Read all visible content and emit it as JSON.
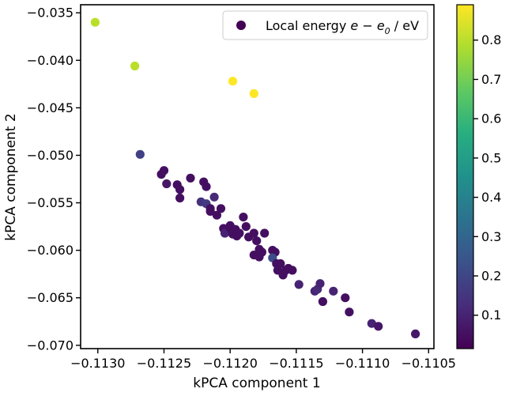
{
  "chart_data": {
    "type": "scatter",
    "title": "",
    "xlabel": "kPCA component 1",
    "ylabel": "kPCA component 2",
    "xlim": [
      -0.11313,
      -0.11046
    ],
    "ylim": [
      -0.07035,
      -0.03415
    ],
    "xticks": [
      -0.113,
      -0.1125,
      -0.112,
      -0.1115,
      -0.111,
      -0.1105
    ],
    "xtick_labels": [
      "−0.1130",
      "−0.1125",
      "−0.1120",
      "−0.1115",
      "−0.1110",
      "−0.1105"
    ],
    "yticks": [
      -0.07,
      -0.065,
      -0.06,
      -0.055,
      -0.05,
      -0.045,
      -0.04,
      -0.035
    ],
    "ytick_labels": [
      "−0.070",
      "−0.065",
      "−0.060",
      "−0.055",
      "−0.050",
      "−0.045",
      "−0.040",
      "−0.035"
    ],
    "legend": {
      "location": "upper right",
      "label_prefix": "Local energy ",
      "label_math": "e − e",
      "label_sub": "0",
      "label_suffix": " / eV"
    },
    "colorbar": {
      "colormap": "viridis",
      "range": [
        0.015,
        0.89
      ],
      "ticks": [
        0.1,
        0.2,
        0.3,
        0.4,
        0.5,
        0.6,
        0.7,
        0.8
      ],
      "tick_labels": [
        "0.1",
        "0.2",
        "0.3",
        "0.4",
        "0.5",
        "0.6",
        "0.7",
        "0.8"
      ]
    },
    "series": [
      {
        "x": [
          -0.11302,
          -0.11272,
          -0.11198,
          -0.11182,
          -0.11268,
          -0.11252,
          -0.1125,
          -0.11248,
          -0.1124,
          -0.11238,
          -0.11238,
          -0.1123,
          -0.11222,
          -0.1122,
          -0.11218,
          -0.11218,
          -0.11215,
          -0.11215,
          -0.11212,
          -0.1121,
          -0.11207,
          -0.11205,
          -0.11204,
          -0.112,
          -0.112,
          -0.11198,
          -0.11196,
          -0.11195,
          -0.11193,
          -0.1119,
          -0.11188,
          -0.11186,
          -0.11182,
          -0.1118,
          -0.11178,
          -0.11176,
          -0.11174,
          -0.11168,
          -0.11166,
          -0.11164,
          -0.1116,
          -0.11158,
          -0.11156,
          -0.11153,
          -0.11148,
          -0.11136,
          -0.11134,
          -0.11132,
          -0.1113,
          -0.11122,
          -0.11113,
          -0.11093,
          -0.11088,
          -0.1106,
          -0.11182,
          -0.11178,
          -0.11168,
          -0.11165,
          -0.11162,
          -0.1111
        ],
        "y": [
          -0.036,
          -0.0406,
          -0.0422,
          -0.0435,
          -0.0499,
          -0.052,
          -0.0516,
          -0.053,
          -0.0531,
          -0.0536,
          -0.0545,
          -0.0524,
          -0.0549,
          -0.0528,
          -0.0533,
          -0.0551,
          -0.0556,
          -0.0559,
          -0.0544,
          -0.0563,
          -0.0556,
          -0.0577,
          -0.0582,
          -0.0577,
          -0.0574,
          -0.0583,
          -0.0578,
          -0.0585,
          -0.0582,
          -0.0565,
          -0.0575,
          -0.0586,
          -0.0582,
          -0.059,
          -0.0599,
          -0.0602,
          -0.0582,
          -0.06,
          -0.0602,
          -0.0621,
          -0.0626,
          -0.0621,
          -0.0619,
          -0.0621,
          -0.0636,
          -0.0643,
          -0.0641,
          -0.0635,
          -0.0654,
          -0.0643,
          -0.065,
          -0.0677,
          -0.068,
          -0.0688,
          -0.0605,
          -0.0607,
          -0.0608,
          -0.0614,
          -0.0614,
          -0.0665
        ],
        "c": [
          0.8,
          0.8,
          0.89,
          0.89,
          0.18,
          0.05,
          0.05,
          0.07,
          0.05,
          0.05,
          0.05,
          0.05,
          0.14,
          0.05,
          0.05,
          0.16,
          0.05,
          0.05,
          0.12,
          0.05,
          0.05,
          0.05,
          0.1,
          0.05,
          0.05,
          0.05,
          0.05,
          0.05,
          0.05,
          0.05,
          0.05,
          0.05,
          0.05,
          0.05,
          0.05,
          0.05,
          0.05,
          0.05,
          0.05,
          0.05,
          0.05,
          0.05,
          0.05,
          0.05,
          0.1,
          0.1,
          0.12,
          0.1,
          0.05,
          0.1,
          0.05,
          0.1,
          0.07,
          0.07,
          0.05,
          0.05,
          0.22,
          0.05,
          0.05,
          0.05
        ]
      }
    ]
  }
}
